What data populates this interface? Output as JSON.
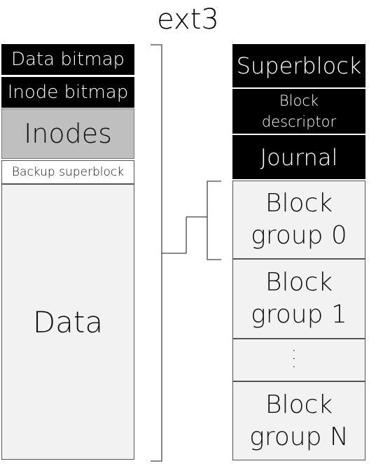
{
  "title": "ext3",
  "block_group_layout": [
    {
      "label": "Data bitmap",
      "style": "dark"
    },
    {
      "label": "Inode bitmap",
      "style": "dark"
    },
    {
      "label": "Inodes",
      "style": "gray"
    },
    {
      "label": "Backup superblock",
      "style": "white"
    },
    {
      "label": "Data",
      "style": "light"
    }
  ],
  "filesystem_layout": [
    {
      "label": "Superblock",
      "style": "dark"
    },
    {
      "label": "Block descriptor",
      "style": "dark"
    },
    {
      "label": "Journal",
      "style": "dark"
    },
    {
      "label": "Block group 0",
      "style": "light"
    },
    {
      "label": "Block group 1",
      "style": "light"
    },
    {
      "label": "...",
      "style": "light"
    },
    {
      "label": "Block group N",
      "style": "light"
    }
  ]
}
